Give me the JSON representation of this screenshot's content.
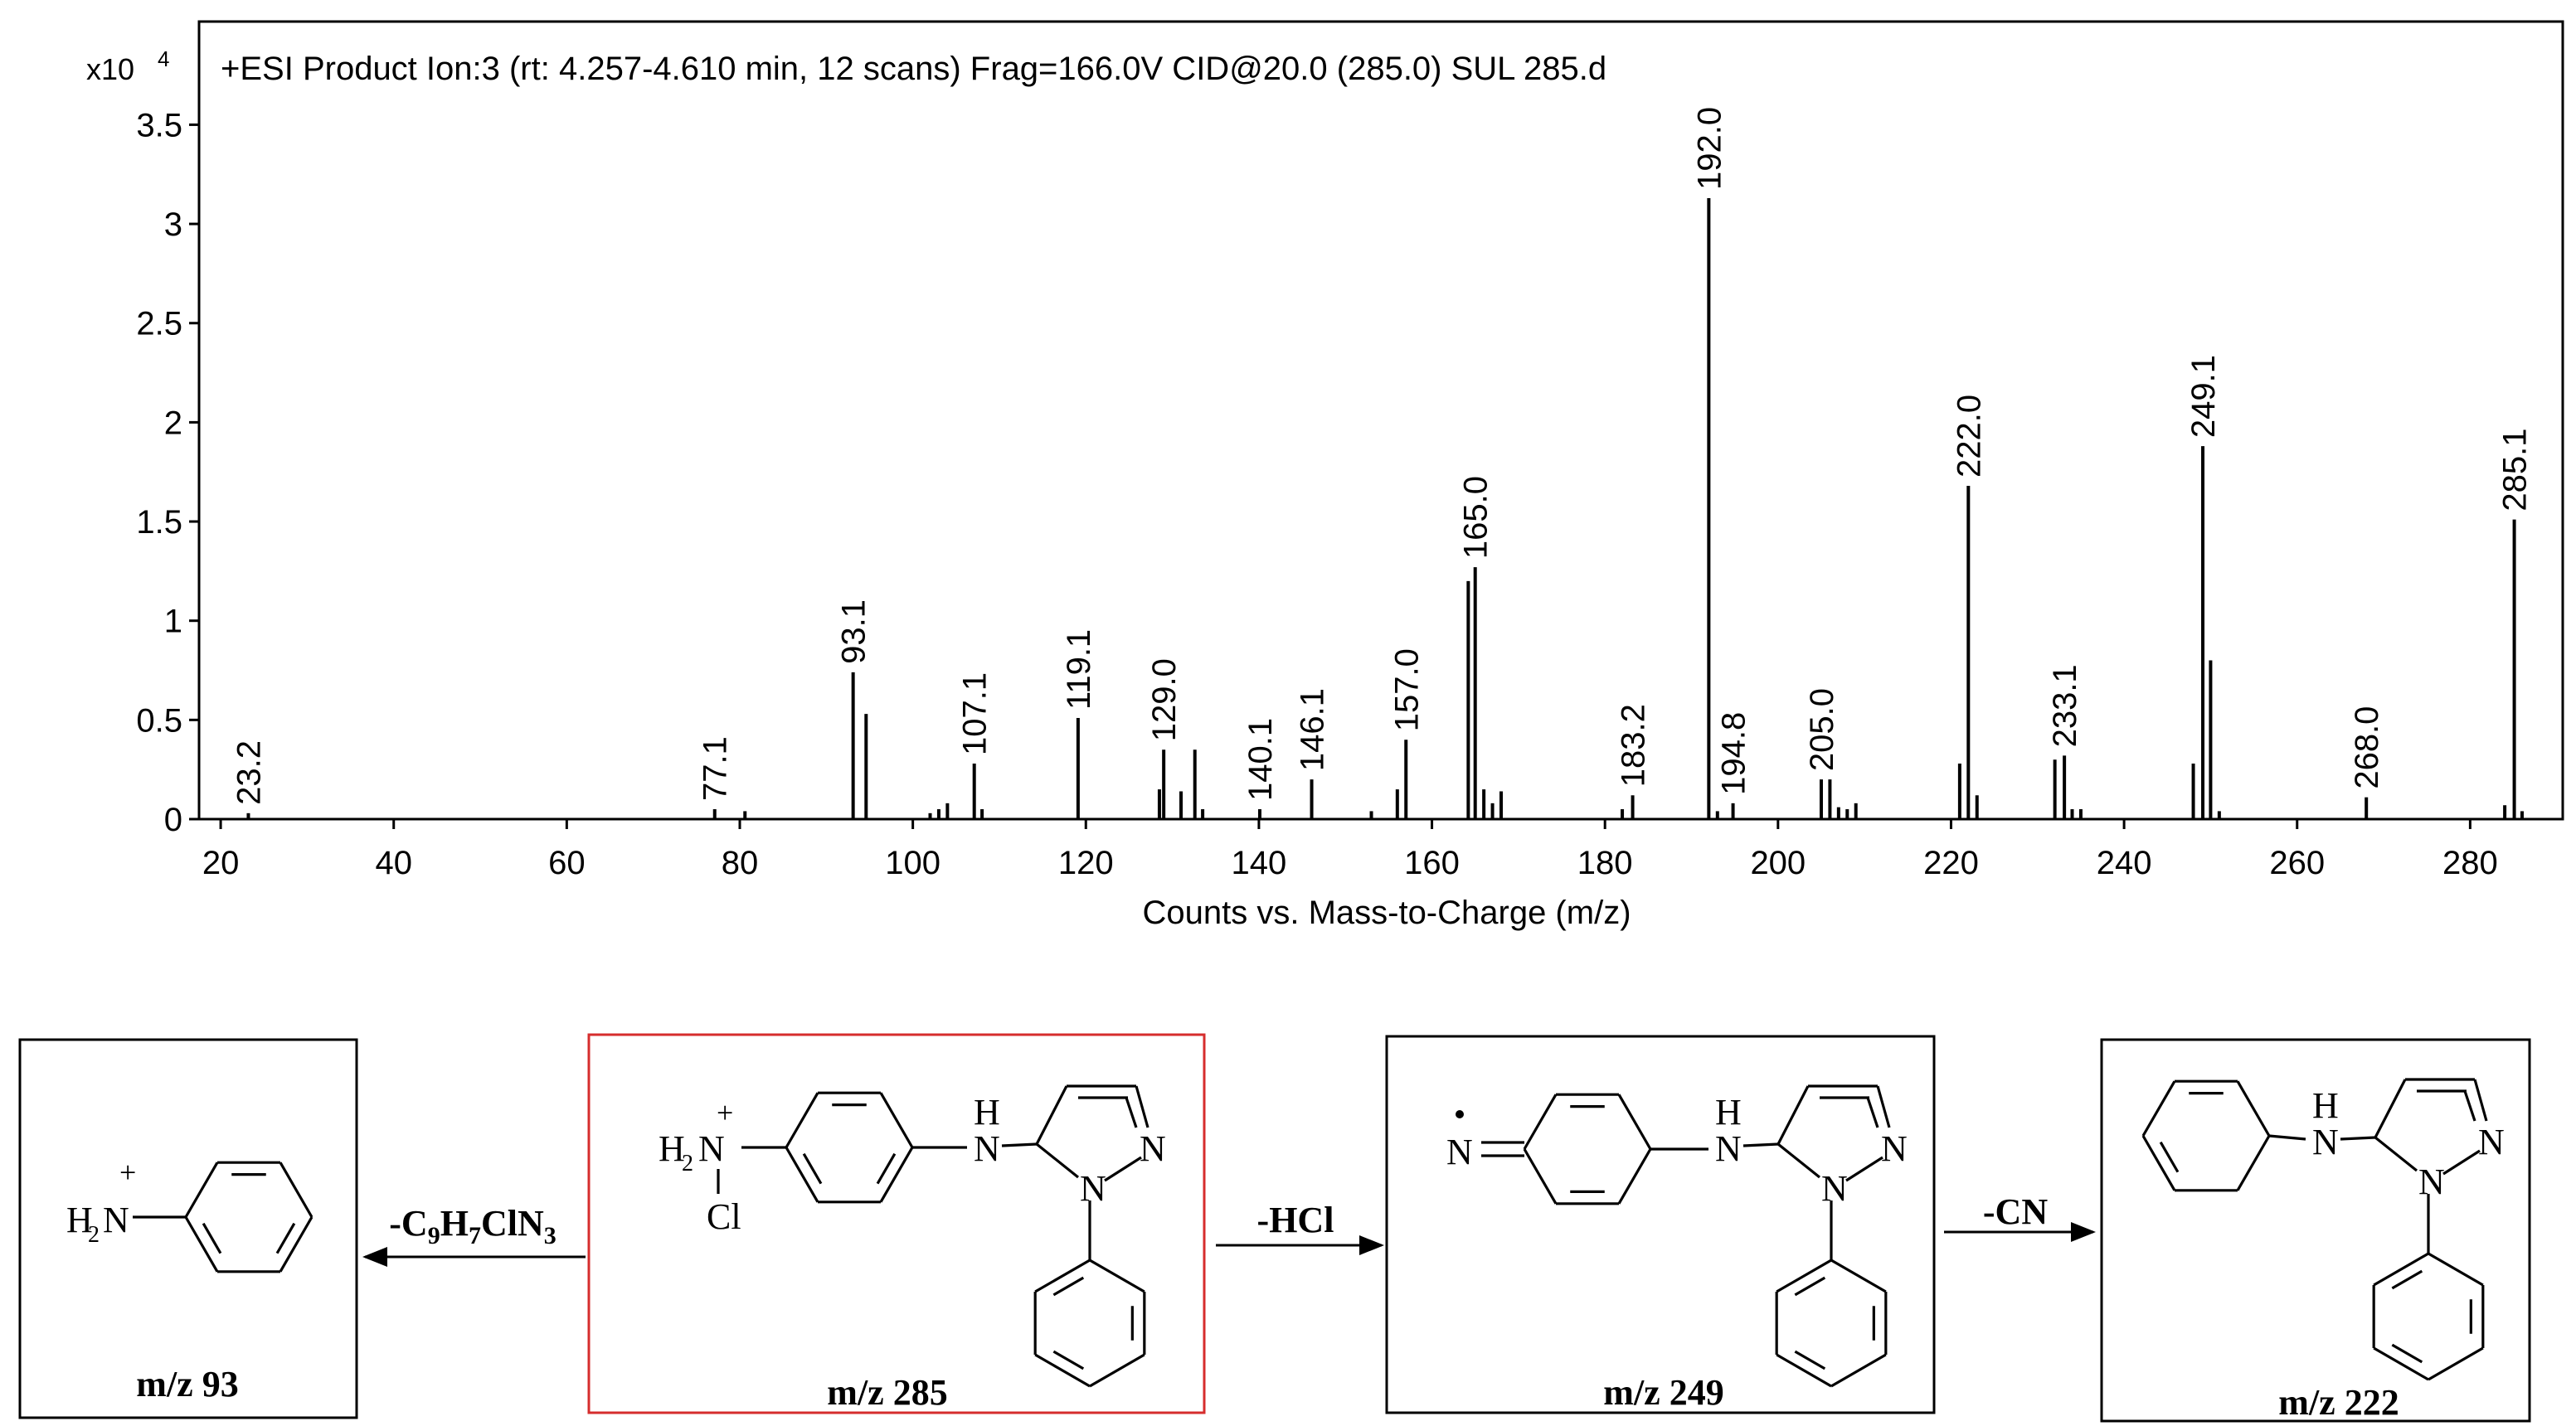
{
  "chart_data": {
    "type": "stem",
    "title": "+ESI Product Ion:3 (rt: 4.257-4.610 min, 12 scans) Frag=166.0V CID@20.0 (285.0) SUL 285.d",
    "y_multiplier": "x10",
    "y_multiplier_exponent": "4",
    "xlabel": "Counts vs. Mass-to-Charge (m/z)",
    "xlim": [
      17.5,
      290.7
    ],
    "ylim": [
      0,
      4.02
    ],
    "xticks": [
      20,
      40,
      60,
      80,
      100,
      120,
      140,
      160,
      180,
      200,
      220,
      240,
      260,
      280
    ],
    "yticks": [
      0,
      {
        "value": 0.5,
        "label": "0.5"
      },
      1,
      {
        "value": 1.5,
        "label": "1.5"
      },
      2,
      {
        "value": 2.5,
        "label": "2.5"
      },
      3,
      {
        "value": 3.5,
        "label": "3.5"
      }
    ],
    "color": "#000000",
    "x": [
      23.2,
      77.1,
      93.1,
      107.1,
      119.1,
      129.0,
      140.1,
      146.1,
      157.0,
      165.0,
      183.2,
      192.0,
      194.8,
      205.0,
      222.0,
      233.1,
      249.1,
      268.0,
      285.1
    ],
    "x_labels": [
      "23.2",
      "77.1",
      "93.1",
      "107.1",
      "119.1",
      "129.0",
      "140.1",
      "146.1",
      "157.0",
      "165.0",
      "183.2",
      "192.0",
      "194.8",
      "205.0",
      "222.0",
      "233.1",
      "249.1",
      "268.0",
      "285.1"
    ],
    "values": [
      0.03,
      0.05,
      0.74,
      0.28,
      0.51,
      0.35,
      0.05,
      0.2,
      0.4,
      1.27,
      0.12,
      3.13,
      0.08,
      0.2,
      1.68,
      0.32,
      1.88,
      0.11,
      1.51
    ],
    "minor_x": [
      80.6,
      94.6,
      102,
      103,
      104,
      108,
      128.5,
      131,
      132.6,
      133.5,
      153,
      156,
      164.2,
      166,
      167,
      168,
      182,
      193,
      206,
      207,
      208,
      209,
      221,
      223,
      232,
      234,
      235,
      248,
      250,
      251,
      284,
      286
    ],
    "minor_values": [
      0.04,
      0.53,
      0.03,
      0.05,
      0.08,
      0.05,
      0.15,
      0.14,
      0.35,
      0.05,
      0.04,
      0.15,
      1.2,
      0.15,
      0.08,
      0.14,
      0.05,
      0.04,
      0.2,
      0.06,
      0.05,
      0.08,
      0.28,
      0.12,
      0.3,
      0.05,
      0.05,
      0.28,
      0.8,
      0.04,
      0.07,
      0.04
    ]
  },
  "scheme": {
    "boxes": [
      {
        "caption": "m/z 93",
        "atoms": [
          "+",
          "H",
          "2",
          "N"
        ]
      },
      {
        "caption": "m/z 285",
        "atoms": [
          "+",
          "H",
          "2",
          "N",
          "Cl",
          "H",
          "N",
          "N",
          "N"
        ]
      },
      {
        "caption": "m/z 249",
        "atoms": [
          "N",
          "H",
          "N",
          "N",
          "N"
        ]
      },
      {
        "caption": "m/z 222",
        "atoms": [
          "H",
          "N",
          "N",
          "N"
        ]
      }
    ],
    "arrows": [
      {
        "label": [
          "-C",
          "9",
          "H",
          "7",
          "ClN",
          "3"
        ]
      },
      {
        "label": [
          "-HCl"
        ]
      },
      {
        "label": [
          "-CN"
        ]
      }
    ]
  }
}
